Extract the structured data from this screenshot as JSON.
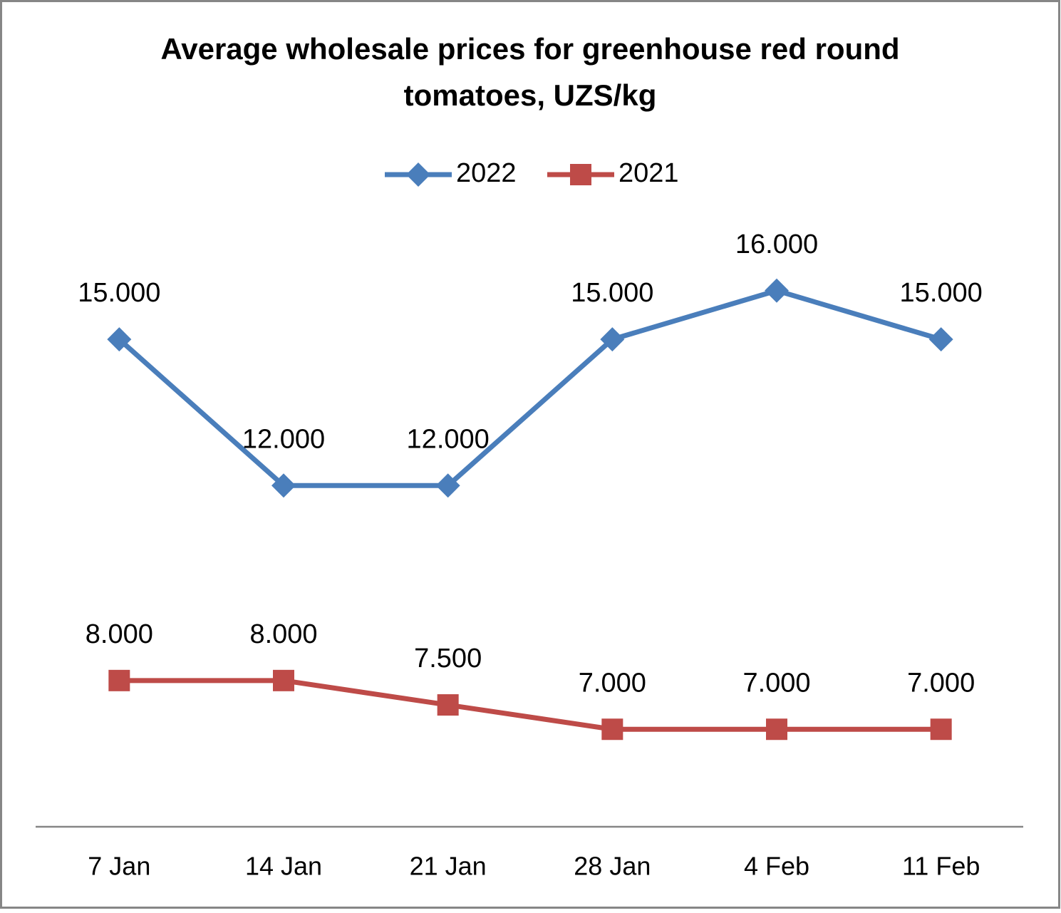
{
  "chart_data": {
    "type": "line",
    "title": "Average wholesale prices for greenhouse red round tomatoes, UZS/kg",
    "categories": [
      "7 Jan",
      "14 Jan",
      "21 Jan",
      "28 Jan",
      "4 Feb",
      "11 Feb"
    ],
    "series": [
      {
        "name": "2022",
        "color": "#4a7ebb",
        "marker": "diamond",
        "values": [
          15000,
          12000,
          12000,
          15000,
          16000,
          15000
        ],
        "value_labels": [
          "15.000",
          "12.000",
          "12.000",
          "15.000",
          "16.000",
          "15.000"
        ]
      },
      {
        "name": "2021",
        "color": "#be4b48",
        "marker": "square",
        "values": [
          8000,
          8000,
          7500,
          7000,
          7000,
          7000
        ],
        "value_labels": [
          "8.000",
          "8.000",
          "7.500",
          "7.000",
          "7.000",
          "7.000"
        ]
      }
    ],
    "ylim": [
      5000,
      18000
    ],
    "legend": "top"
  }
}
